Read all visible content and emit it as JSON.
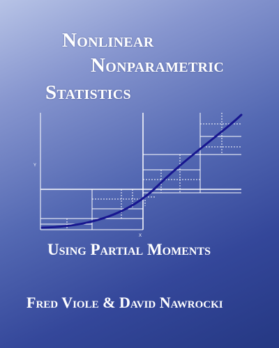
{
  "cover": {
    "title_lines": [
      "Nonlinear",
      "Nonparametric",
      "Statistics"
    ],
    "subtitle": "Using Partial Moments",
    "authors": "Fred Viole & David Nawrocki"
  },
  "figure": {
    "y_axis_label": "Y",
    "x_axis_label": "X",
    "colors": {
      "curve": "#17168f",
      "lines": "#ffffff"
    }
  }
}
